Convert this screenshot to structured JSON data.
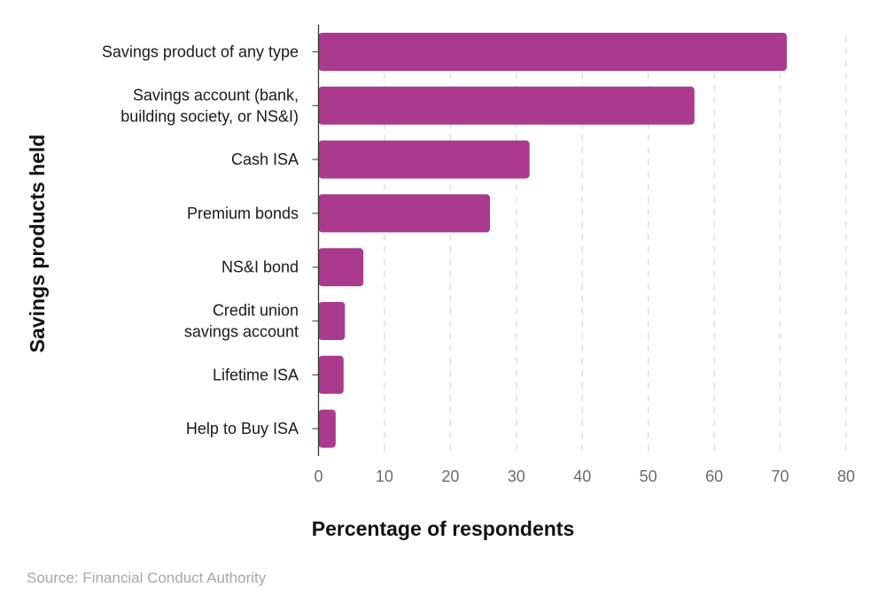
{
  "chart_data": {
    "type": "bar",
    "orientation": "horizontal",
    "categories": [
      [
        "Savings product of any type"
      ],
      [
        "Savings account (bank,",
        "building society, or NS&I)"
      ],
      [
        "Cash ISA"
      ],
      [
        "Premium bonds"
      ],
      [
        "NS&I bond"
      ],
      [
        "Credit union",
        "savings account"
      ],
      [
        "Lifetime ISA"
      ],
      [
        "Help to Buy ISA"
      ]
    ],
    "values": [
      71,
      57,
      32,
      26,
      6.8,
      4,
      3.8,
      2.6
    ],
    "xlabel": "Percentage of respondents",
    "ylabel": "Savings products held",
    "xlim": [
      0,
      80
    ],
    "xticks": [
      0,
      10,
      20,
      30,
      40,
      50,
      60,
      70,
      80
    ],
    "grid": "vertical dashed",
    "bar_color": "#AA3A8E"
  },
  "source": "Source: Financial Conduct Authority"
}
